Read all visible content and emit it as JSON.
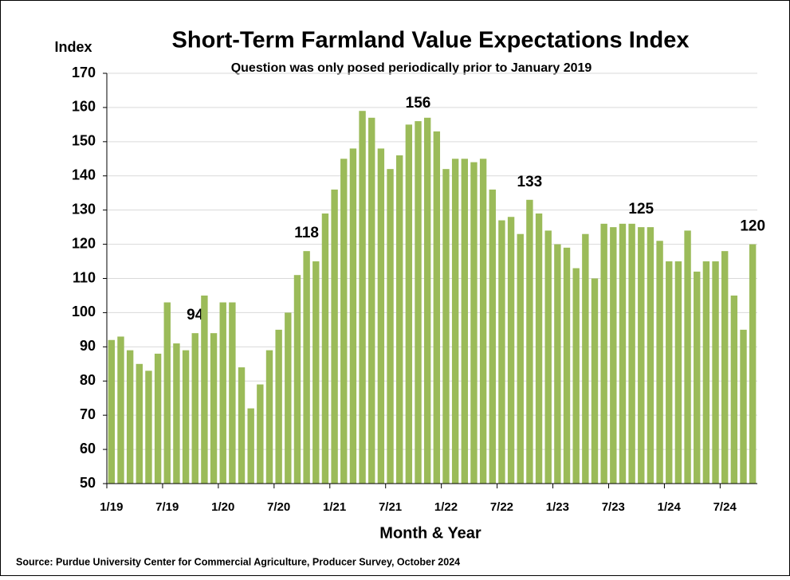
{
  "chart_data": {
    "type": "bar",
    "title": "Short-Term Farmland Value Expectations Index",
    "subtitle": "Question was only posed periodically prior to January 2019",
    "y_label": "Index",
    "x_label": "Month & Year",
    "source": "Source: Purdue University Center for Commercial Agriculture, Producer Survey, October 2024",
    "categories": [
      "1/19",
      null,
      null,
      null,
      null,
      null,
      "7/19",
      null,
      null,
      null,
      null,
      null,
      "1/20",
      null,
      null,
      null,
      null,
      null,
      "7/20",
      null,
      null,
      null,
      null,
      null,
      "1/21",
      null,
      null,
      null,
      null,
      null,
      "7/21",
      null,
      null,
      null,
      null,
      null,
      "1/22",
      null,
      null,
      null,
      null,
      null,
      "7/22",
      null,
      null,
      null,
      null,
      null,
      "1/23",
      null,
      null,
      null,
      null,
      null,
      "7/23",
      null,
      null,
      null,
      null,
      null,
      "1/24",
      null,
      null,
      null,
      null,
      null,
      "7/24",
      null,
      null,
      null
    ],
    "values": [
      92,
      93,
      89,
      85,
      83,
      88,
      103,
      91,
      89,
      94,
      105,
      94,
      103,
      103,
      84,
      72,
      79,
      89,
      95,
      100,
      111,
      118,
      115,
      129,
      136,
      145,
      148,
      159,
      157,
      148,
      142,
      146,
      155,
      156,
      157,
      153,
      142,
      145,
      145,
      144,
      145,
      136,
      127,
      128,
      123,
      133,
      129,
      124,
      120,
      119,
      113,
      123,
      110,
      126,
      125,
      126,
      126,
      125,
      125,
      121,
      115,
      115,
      124,
      112,
      115,
      115,
      118,
      105,
      95,
      120
    ],
    "value_labels": [
      null,
      null,
      null,
      null,
      null,
      null,
      null,
      null,
      null,
      94,
      null,
      null,
      null,
      null,
      null,
      null,
      null,
      null,
      null,
      null,
      null,
      118,
      null,
      null,
      null,
      null,
      null,
      null,
      null,
      null,
      null,
      null,
      null,
      156,
      null,
      null,
      null,
      null,
      null,
      null,
      null,
      null,
      null,
      null,
      null,
      133,
      null,
      null,
      null,
      null,
      null,
      null,
      null,
      null,
      null,
      null,
      null,
      125,
      null,
      null,
      null,
      null,
      null,
      null,
      null,
      null,
      null,
      null,
      null,
      120
    ],
    "color": "#9bbb59",
    "ylim": [
      50,
      170
    ],
    "yticks": [
      50,
      60,
      70,
      80,
      90,
      100,
      110,
      120,
      130,
      140,
      150,
      160,
      170
    ],
    "grid": true
  }
}
